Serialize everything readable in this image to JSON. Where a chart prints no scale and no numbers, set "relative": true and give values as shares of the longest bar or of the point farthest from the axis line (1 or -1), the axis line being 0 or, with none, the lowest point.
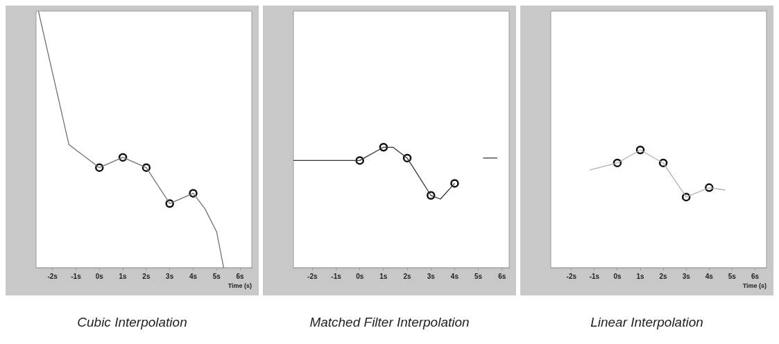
{
  "chart_data": [
    {
      "type": "line",
      "title": "Cubic Interpolation",
      "xlabel": "Time (s)",
      "relative": true,
      "tick_labels": "x",
      "xlim": [
        -2.7,
        6.5
      ],
      "xticks": [
        {
          "value": -2,
          "label": "-2s"
        },
        {
          "value": -1,
          "label": "-1s"
        },
        {
          "value": 0,
          "label": "0s"
        },
        {
          "value": 1,
          "label": "1s"
        },
        {
          "value": 2,
          "label": "2s"
        },
        {
          "value": 3,
          "label": "3s"
        },
        {
          "value": 4,
          "label": "4s"
        },
        {
          "value": 5,
          "label": "5s"
        },
        {
          "value": 6,
          "label": "6s"
        }
      ],
      "series": [
        {
          "type": "line",
          "color": "#707070",
          "marker": "none",
          "x": [
            -2.6,
            -2.0,
            -1.3,
            0,
            1,
            2,
            3,
            4,
            4.5,
            5,
            5.3
          ],
          "values": [
            1.0,
            0.76,
            0.48,
            0.39,
            0.43,
            0.39,
            0.25,
            0.29,
            0.23,
            0.14,
            0.0
          ]
        },
        {
          "type": "scatter",
          "color": "#111111",
          "marker": "circle",
          "x": [
            0,
            1,
            2,
            3,
            4
          ],
          "values": [
            0.39,
            0.43,
            0.39,
            0.25,
            0.29
          ]
        }
      ]
    },
    {
      "type": "line",
      "title": "Matched Filter Interpolation",
      "relative": true,
      "tick_labels": "x",
      "xlim": [
        -2.8,
        6.3
      ],
      "xticks": [
        {
          "value": -2,
          "label": "-2s"
        },
        {
          "value": -1,
          "label": "-1s"
        },
        {
          "value": 0,
          "label": "0s"
        },
        {
          "value": 1,
          "label": "1s"
        },
        {
          "value": 2,
          "label": "2s"
        },
        {
          "value": 3,
          "label": "3s"
        },
        {
          "value": 4,
          "label": "4s"
        },
        {
          "value": 5,
          "label": "5s"
        },
        {
          "value": 6,
          "label": "6s"
        }
      ],
      "series": [
        {
          "type": "line",
          "color": "#333333",
          "marker": "none",
          "x": [
            -2.8,
            -0.6,
            0,
            1,
            1.4,
            2,
            3,
            3.4,
            4,
            4.6,
            5.2,
            5.8
          ],
          "values": [
            0.89,
            0.89,
            0.89,
            1.0,
            1.0,
            0.91,
            0.6,
            0.57,
            0.7,
            null,
            0.91,
            0.91
          ]
        },
        {
          "type": "scatter",
          "color": "#111111",
          "marker": "circle",
          "x": [
            0,
            1,
            2,
            3,
            4
          ],
          "values": [
            0.89,
            1.0,
            0.91,
            0.6,
            0.7
          ]
        }
      ]
    },
    {
      "type": "line",
      "title": "Linear Interpolation",
      "xlabel": "Time (s)",
      "relative": true,
      "tick_labels": "x",
      "xlim": [
        -2.9,
        6.5
      ],
      "xticks": [
        {
          "value": -2,
          "label": "-2s"
        },
        {
          "value": -1,
          "label": "-1s"
        },
        {
          "value": 0,
          "label": "0s"
        },
        {
          "value": 1,
          "label": "1s"
        },
        {
          "value": 2,
          "label": "2s"
        },
        {
          "value": 3,
          "label": "3s"
        },
        {
          "value": 4,
          "label": "4s"
        },
        {
          "value": 5,
          "label": "5s"
        },
        {
          "value": 6,
          "label": "6s"
        }
      ],
      "series": [
        {
          "type": "line",
          "color": "#b0b0b0",
          "marker": "none",
          "x": [
            -1.2,
            0,
            1,
            2,
            3,
            4,
            4.7
          ],
          "values": [
            0.83,
            0.89,
            1.0,
            0.89,
            0.6,
            0.68,
            0.66
          ]
        },
        {
          "type": "scatter",
          "color": "#111111",
          "marker": "circle",
          "x": [
            0,
            1,
            2,
            3,
            4
          ],
          "values": [
            0.89,
            1.0,
            0.89,
            0.6,
            0.68
          ]
        }
      ]
    }
  ]
}
